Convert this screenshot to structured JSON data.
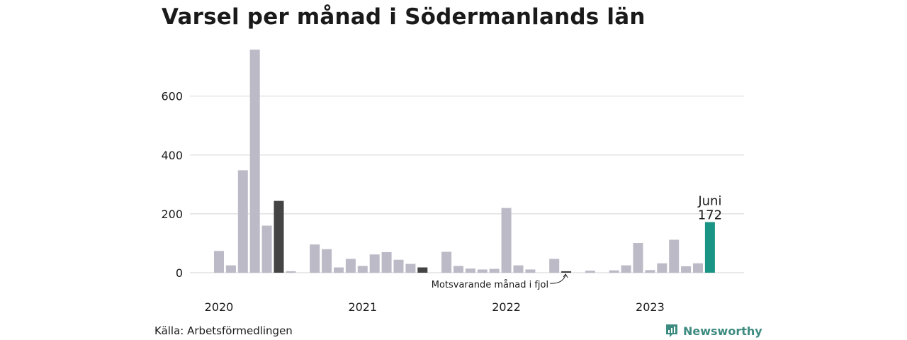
{
  "title": "Varsel per månad i Södermanlands län",
  "source": "Källa: Arbetsförmedlingen",
  "brand": {
    "name": "Newsworthy",
    "icon": "newsworthy-logo-icon"
  },
  "colors": {
    "bar": "#bcbac7",
    "same_month": "#444444",
    "highlight": "#1a9484",
    "grid": "#dcdcdc",
    "brand": "#3d8b80"
  },
  "chart_data": {
    "type": "bar",
    "title": "Varsel per månad i Södermanlands län",
    "xlabel": "",
    "ylabel": "",
    "ylim": [
      0,
      760
    ],
    "yticks": [
      0,
      200,
      400,
      600
    ],
    "ytick_labels": [
      "0",
      "200",
      "400",
      "600"
    ],
    "year_labels": [
      "2020",
      "2021",
      "2022",
      "2023"
    ],
    "grid": true,
    "categories": [
      "2020-01",
      "2020-02",
      "2020-03",
      "2020-04",
      "2020-05",
      "2020-06",
      "2020-07",
      "2020-08",
      "2020-09",
      "2020-10",
      "2020-11",
      "2020-12",
      "2021-01",
      "2021-02",
      "2021-03",
      "2021-04",
      "2021-05",
      "2021-06",
      "2021-07",
      "2021-08",
      "2021-09",
      "2021-10",
      "2021-11",
      "2021-12",
      "2022-01",
      "2022-02",
      "2022-03",
      "2022-04",
      "2022-05",
      "2022-06",
      "2022-07",
      "2022-08",
      "2022-09",
      "2022-10",
      "2022-11",
      "2022-12",
      "2023-01",
      "2023-02",
      "2023-03",
      "2023-04",
      "2023-05",
      "2023-06"
    ],
    "values": [
      74,
      25,
      348,
      758,
      160,
      244,
      5,
      0,
      96,
      80,
      18,
      47,
      23,
      62,
      70,
      44,
      30,
      18,
      0,
      71,
      23,
      14,
      11,
      13,
      220,
      25,
      11,
      0,
      47,
      5,
      0,
      7,
      0,
      8,
      25,
      101,
      9,
      32,
      112,
      22,
      32,
      172
    ],
    "same_month_indices": [
      5,
      17,
      29
    ],
    "highlight_index": 41,
    "annotations": {
      "highlight_month": "Juni",
      "highlight_value": "172",
      "same_month_note": "Motsvarande månad i fjol"
    }
  }
}
